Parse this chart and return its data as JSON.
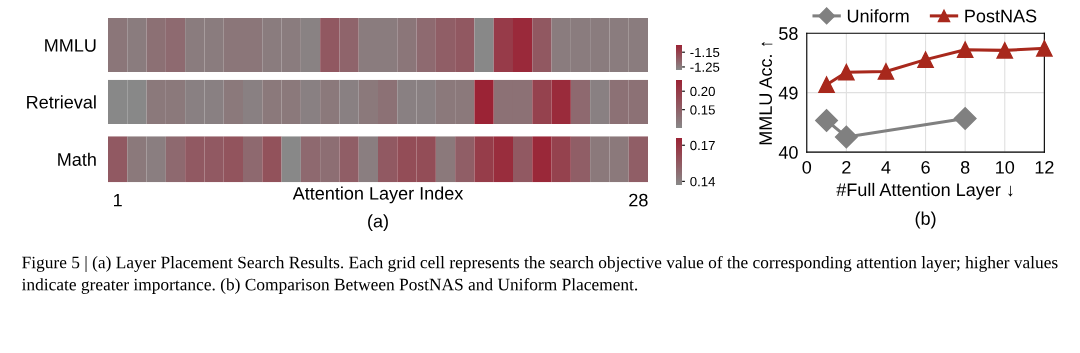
{
  "chart_data": [
    {
      "type": "heatmap",
      "y_categories": [
        "MMLU"
      ],
      "categories": [
        null,
        null,
        null,
        null,
        null,
        null,
        null,
        null,
        null,
        null,
        null,
        null,
        null,
        null,
        null,
        null,
        null,
        null,
        null,
        null,
        null,
        null,
        null,
        null,
        null,
        null,
        null,
        null
      ],
      "tick_labels": "y",
      "colors": [
        "#888888",
        "#9b2335"
      ],
      "cells": [
        [
          -1.24,
          -1.25,
          -1.23,
          -1.22,
          -1.25,
          -1.25,
          -1.24,
          -1.24,
          -1.25,
          -1.25,
          -1.26,
          -1.19,
          -1.21,
          -1.25,
          -1.25,
          -1.24,
          -1.22,
          -1.2,
          -1.19,
          -1.27,
          -1.14,
          -1.11,
          -1.19,
          -1.25,
          -1.25,
          -1.25,
          -1.25,
          -1.25
        ]
      ],
      "clim": [
        -1.27,
        -1.1
      ],
      "cticks": [
        -1.25,
        -1.15
      ],
      "annotations": [
        "Figure 5 | (a) Layer Placement Search Results. Each grid cell represents the search objective value of the corresponding attention layer; higher values indicate greater importance. (b) Comparison Between PostNAS and Uniform Placement."
      ]
    },
    {
      "type": "heatmap",
      "y_categories": [
        "Retrieval"
      ],
      "categories": [
        null,
        null,
        null,
        null,
        null,
        null,
        null,
        null,
        null,
        null,
        null,
        null,
        null,
        null,
        null,
        null,
        null,
        null,
        null,
        null,
        null,
        null,
        null,
        null,
        null,
        null,
        null,
        null
      ],
      "tick_labels": "y",
      "colors": [
        "#888888",
        "#9b2335"
      ],
      "cells": [
        [
          0.1,
          0.1,
          0.12,
          0.12,
          0.11,
          0.11,
          0.12,
          0.11,
          0.12,
          0.12,
          0.11,
          0.12,
          0.11,
          0.12,
          0.13,
          0.11,
          0.11,
          0.12,
          0.12,
          0.23,
          0.13,
          0.13,
          0.19,
          0.22,
          0.14,
          0.11,
          0.13,
          0.13
        ]
      ],
      "clim": [
        0.1,
        0.23
      ],
      "cticks": [
        {
          "value": 0.15,
          "label": "0.15"
        },
        {
          "value": 0.2,
          "label": "0.20"
        }
      ]
    },
    {
      "type": "heatmap",
      "y_categories": [
        "Math"
      ],
      "categories": [
        "1",
        null,
        null,
        null,
        null,
        null,
        null,
        null,
        null,
        null,
        null,
        null,
        null,
        null,
        null,
        null,
        null,
        null,
        null,
        null,
        null,
        null,
        null,
        null,
        null,
        null,
        null,
        "28"
      ],
      "xlabel": "Attention Layer Index",
      "colors": [
        "#888888",
        "#9b2335"
      ],
      "cells": [
        [
          0.155,
          0.143,
          0.141,
          0.149,
          0.155,
          0.155,
          0.157,
          0.149,
          0.158,
          0.137,
          0.149,
          0.147,
          0.153,
          0.141,
          0.155,
          0.16,
          0.16,
          0.143,
          0.153,
          0.166,
          0.172,
          0.155,
          0.174,
          0.164,
          0.153,
          0.143,
          0.143,
          0.153
        ]
      ],
      "clim": [
        0.137,
        0.176
      ],
      "cticks": [
        0.14,
        0.17
      ],
      "annotations": [
        "(a)"
      ]
    },
    {
      "type": "line",
      "xlabel": "#Full Attention Layer ↓",
      "ylabel": "MMLU Acc. ↑",
      "xlim": [
        0,
        12
      ],
      "xticks": [
        0,
        2,
        4,
        6,
        8,
        10,
        12
      ],
      "ylim": [
        40,
        58
      ],
      "yticks": [
        40,
        49,
        58
      ],
      "grid": true,
      "legend": "top",
      "annotations": [
        "(b)"
      ],
      "series": [
        {
          "name": "Uniform",
          "color": "#808080",
          "marker": "diamond",
          "x": [
            1,
            2,
            8
          ],
          "values": [
            44.8,
            42.3,
            45.1
          ]
        },
        {
          "name": "PostNAS",
          "color": "#a8281c",
          "marker": "triangle",
          "x": [
            1,
            2,
            4,
            6,
            8,
            10,
            12
          ],
          "values": [
            50.2,
            52.1,
            52.2,
            54.0,
            55.5,
            55.4,
            55.7
          ]
        }
      ]
    }
  ]
}
